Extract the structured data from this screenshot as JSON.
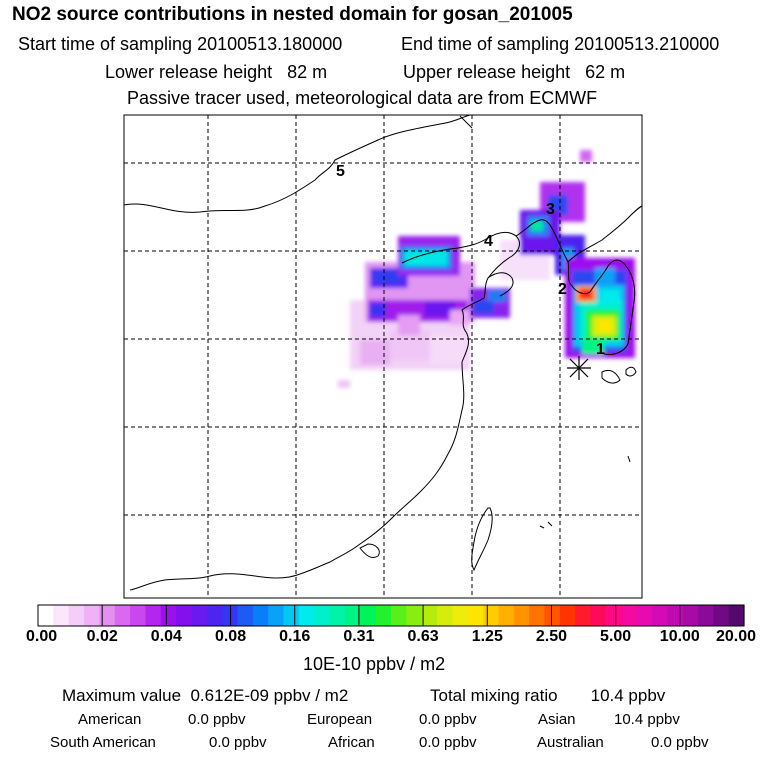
{
  "header": {
    "title": "NO2 source contributions in nested domain for gosan_201005",
    "start_sampling": "Start time of sampling 20100513.180000",
    "end_sampling": "End time of sampling 20100513.210000",
    "lower_release": "Lower release height   82 m",
    "upper_release": "Upper release height   62 m",
    "tracer_note": "Passive tracer used, meteorological data are from ECMWF"
  },
  "map": {
    "receptor_label": "*",
    "point_labels": [
      "1",
      "2",
      "3",
      "4",
      "5"
    ]
  },
  "colorbar": {
    "ticks": [
      "0.00",
      "0.02",
      "0.04",
      "0.08",
      "0.16",
      "0.31",
      "0.63",
      "1.25",
      "2.50",
      "5.00",
      "10.00",
      "20.00"
    ],
    "units": "10E-10 ppbv / m2",
    "colors": [
      "#ffffff",
      "#fbe6fc",
      "#f5cdf9",
      "#efb2f6",
      "#e58ff2",
      "#d96aef",
      "#c848ee",
      "#b426ee",
      "#9d10ee",
      "#8410ee",
      "#6a1aee",
      "#4e24f0",
      "#3636f2",
      "#1e5af4",
      "#0a7ef6",
      "#0aa2f8",
      "#04c8f4",
      "#00ecec",
      "#00f0cc",
      "#00f4a8",
      "#00f484",
      "#00f45a",
      "#22f22e",
      "#58f01a",
      "#88ee12",
      "#b4ec0e",
      "#d6ec0c",
      "#f0ec0a",
      "#ffe600",
      "#ffcc00",
      "#ffb000",
      "#ff9400",
      "#ff7400",
      "#ff5400",
      "#ff3400",
      "#ff1a2c",
      "#ff0a5a",
      "#ff0a84",
      "#f50aa0",
      "#e60ab0",
      "#d40ab4",
      "#c00ab0",
      "#a80aa8",
      "#8c0a98",
      "#700a84",
      "#540a6c"
    ]
  },
  "summary": {
    "max_label": "Maximum value  0.612E-09 ppbv / m2",
    "total_label": "Total mixing ratio       10.4 ppbv",
    "regions": [
      {
        "name": "American",
        "value": "0.0 ppbv"
      },
      {
        "name": "European",
        "value": "0.0 ppbv"
      },
      {
        "name": "Asian",
        "value": "10.4 ppbv"
      },
      {
        "name": "South American",
        "value": "0.0 ppbv"
      },
      {
        "name": "African",
        "value": "0.0 ppbv"
      },
      {
        "name": "Australian",
        "value": "0.0 ppbv"
      }
    ]
  }
}
